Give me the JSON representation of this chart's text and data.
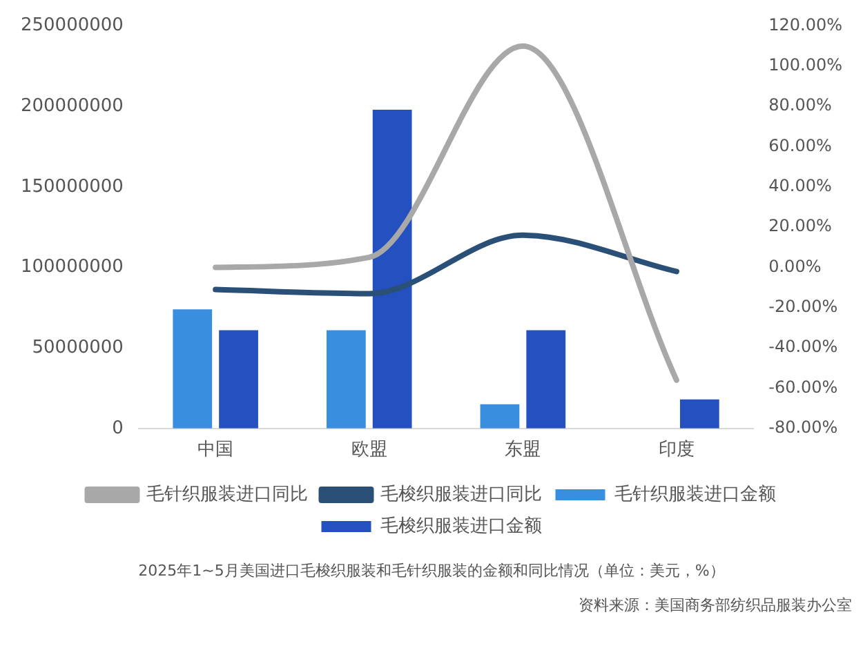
{
  "chart_data": {
    "type": "bar",
    "categories": [
      "中国",
      "欧盟",
      "东盟",
      "印度"
    ],
    "series": [
      {
        "name": "毛针织服装进口金额",
        "color": "#3a8ee0",
        "values": [
          74000000,
          61000000,
          15000000,
          null
        ]
      },
      {
        "name": "毛梭织服装进口金额",
        "color": "#2450c0",
        "values": [
          61000000,
          198000000,
          61000000,
          18000000
        ]
      },
      {
        "name": "毛针织服装进口同比",
        "type": "line",
        "axis": "y2",
        "color": "#a8a8a8",
        "values": [
          0,
          5,
          110,
          -56
        ]
      },
      {
        "name": "毛梭织服装进口同比",
        "type": "line",
        "axis": "y2",
        "color": "#2a5078",
        "values": [
          -11,
          -13,
          16,
          -2
        ]
      }
    ],
    "ylim": [
      0,
      250000000
    ],
    "yticks": [
      0,
      50000000,
      100000000,
      150000000,
      200000000,
      250000000
    ],
    "y2lim": [
      -80,
      120
    ],
    "y2ticks": [
      {
        "value": -80,
        "label": "-80.00%"
      },
      {
        "value": -60,
        "label": "-60.00%"
      },
      {
        "value": -40,
        "label": "-40.00%"
      },
      {
        "value": -20,
        "label": "-20.00%"
      },
      {
        "value": 0,
        "label": "0.00%"
      },
      {
        "value": 20,
        "label": "20.00%"
      },
      {
        "value": 40,
        "label": "40.00%"
      },
      {
        "value": 60,
        "label": "60.00%"
      },
      {
        "value": 80,
        "label": "80.00%"
      },
      {
        "value": 100,
        "label": "100.00%"
      },
      {
        "value": 120,
        "label": "120.00%"
      }
    ],
    "grid": false,
    "legend": "bottom",
    "marker": "none",
    "annotations": [
      "2025年1~5月美国进口毛梭织服装和毛针织服装的金额和同比情况（单位：美元，%）",
      "资料来源：美国商务部纺织品服装办公室"
    ]
  }
}
